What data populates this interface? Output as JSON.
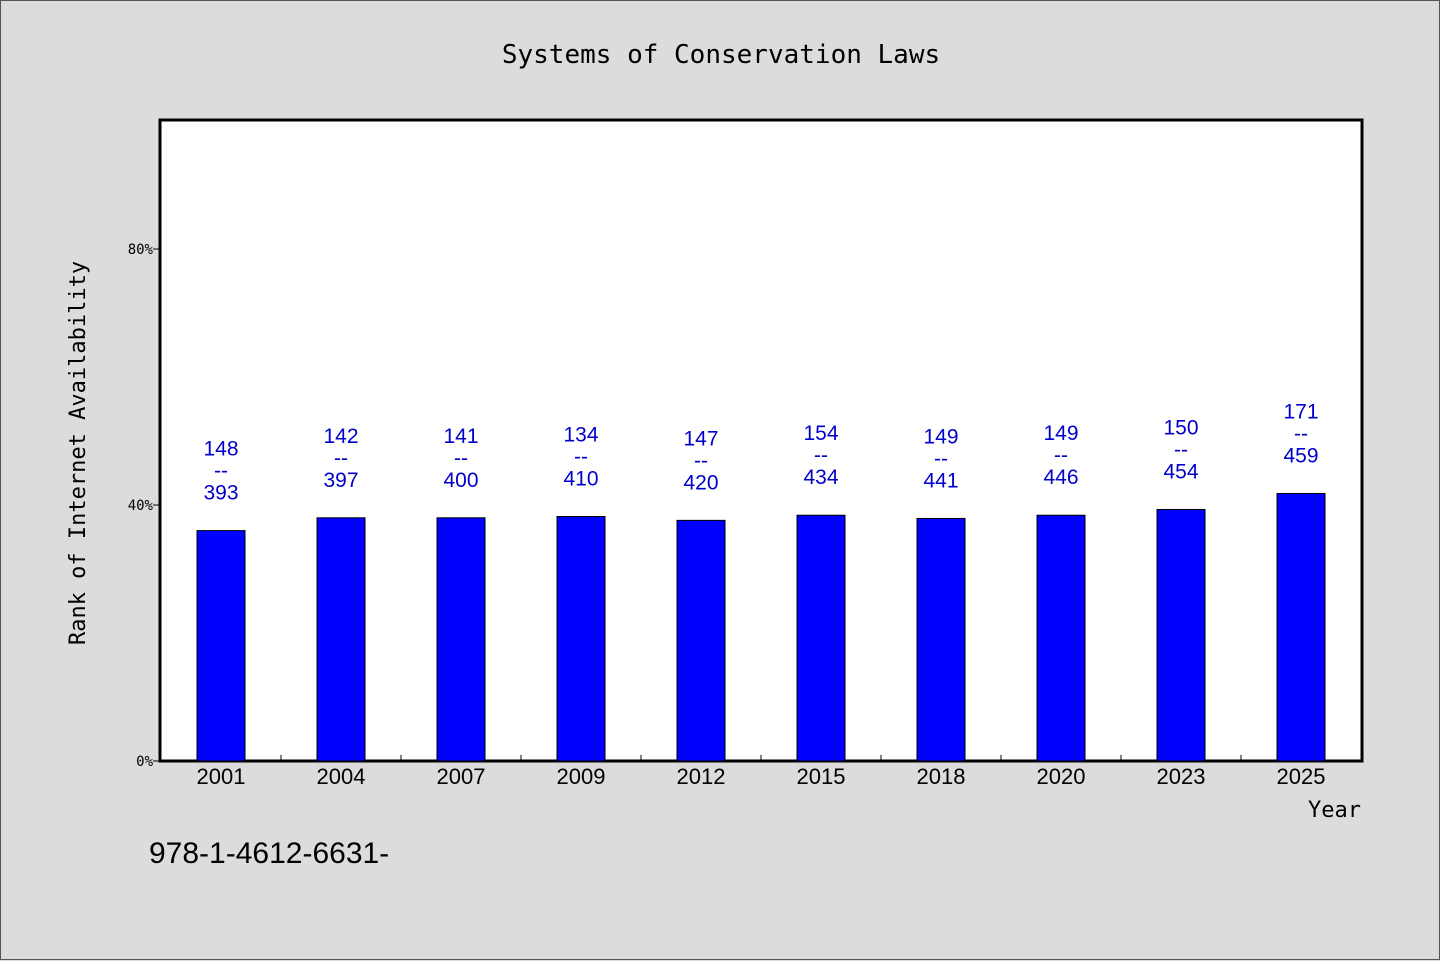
{
  "chart_data": {
    "type": "bar",
    "title": "Systems of Conservation Laws",
    "xlabel": "Year",
    "ylabel": "Rank of Internet Availability",
    "categories": [
      "2001",
      "2004",
      "2007",
      "2009",
      "2012",
      "2015",
      "2018",
      "2020",
      "2023",
      "2025"
    ],
    "values": [
      36.0,
      38.0,
      38.0,
      38.2,
      37.6,
      38.4,
      37.9,
      38.4,
      39.3,
      41.8
    ],
    "value_unit": "%",
    "ylim": [
      0,
      100
    ],
    "yticks": [
      0,
      40,
      80
    ],
    "ytick_labels": [
      "0%",
      "40%",
      "80%"
    ],
    "data_labels": [
      {
        "top": "148",
        "sep": "--",
        "bottom": "393"
      },
      {
        "top": "142",
        "sep": "--",
        "bottom": "397"
      },
      {
        "top": "141",
        "sep": "--",
        "bottom": "400"
      },
      {
        "top": "134",
        "sep": "--",
        "bottom": "410"
      },
      {
        "top": "147",
        "sep": "--",
        "bottom": "420"
      },
      {
        "top": "154",
        "sep": "--",
        "bottom": "434"
      },
      {
        "top": "149",
        "sep": "--",
        "bottom": "441"
      },
      {
        "top": "149",
        "sep": "--",
        "bottom": "446"
      },
      {
        "top": "150",
        "sep": "--",
        "bottom": "454"
      },
      {
        "top": "171",
        "sep": "--",
        "bottom": "459"
      }
    ],
    "bar_color": "#0000ff",
    "label_color": "#0000cc",
    "grid": false,
    "legend": "none"
  },
  "footnote": "978-1-4612-6631-"
}
